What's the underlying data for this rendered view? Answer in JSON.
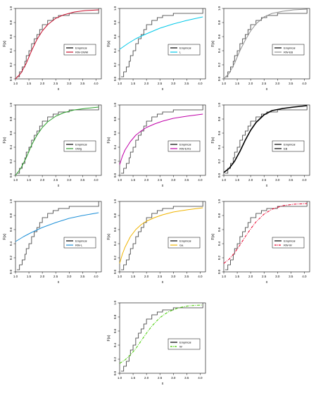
{
  "ecdf": {
    "x": [
      1.05,
      1.15,
      1.25,
      1.35,
      1.4,
      1.5,
      1.6,
      1.7,
      1.8,
      1.9,
      2.0,
      2.2,
      2.4,
      2.6,
      3.0,
      4.1
    ],
    "y": [
      0.03,
      0.1,
      0.17,
      0.25,
      0.33,
      0.4,
      0.5,
      0.57,
      0.63,
      0.7,
      0.77,
      0.83,
      0.87,
      0.9,
      0.93,
      1.0
    ]
  },
  "axes": {
    "xlabel": "x",
    "ylabel": "F(x)",
    "xlim": [
      1.0,
      4.2
    ],
    "ylim": [
      0.0,
      1.0
    ],
    "xticks": [
      "1.0",
      "1.5",
      "2.0",
      "2.5",
      "3.0",
      "3.5",
      "4.0"
    ],
    "yticks": [
      "0.0",
      "0.2",
      "0.4",
      "0.6",
      "0.8",
      "1.0"
    ]
  },
  "legend_empirical": "Empirical",
  "chart_data": [
    {
      "type": "line",
      "model": "RW-OWM",
      "color": "#c8102e",
      "linestyle": "solid",
      "legend": [
        "Empirical",
        "RW-OWM"
      ],
      "x": [
        1.0,
        1.2,
        1.4,
        1.6,
        1.8,
        2.0,
        2.2,
        2.5,
        2.8,
        3.2,
        3.6,
        4.1
      ],
      "y": [
        0.0,
        0.08,
        0.22,
        0.4,
        0.56,
        0.68,
        0.77,
        0.86,
        0.91,
        0.95,
        0.97,
        0.98
      ]
    },
    {
      "type": "line",
      "model": "L",
      "color": "#00c8e8",
      "linestyle": "solid",
      "legend": [
        "Empirical",
        "L"
      ],
      "x": [
        1.0,
        1.3,
        1.6,
        2.0,
        2.5,
        3.0,
        3.5,
        4.1
      ],
      "y": [
        0.42,
        0.5,
        0.57,
        0.64,
        0.72,
        0.78,
        0.83,
        0.88
      ]
    },
    {
      "type": "line",
      "model": "RW-EB",
      "color": "#909090",
      "linestyle": "solid",
      "legend": [
        "Empirical",
        "RW-EB"
      ],
      "x": [
        1.0,
        1.2,
        1.4,
        1.6,
        1.8,
        2.0,
        2.2,
        2.5,
        2.8,
        3.2,
        3.6,
        4.1
      ],
      "y": [
        0.0,
        0.08,
        0.22,
        0.4,
        0.55,
        0.68,
        0.78,
        0.88,
        0.93,
        0.96,
        0.98,
        0.99
      ]
    },
    {
      "type": "line",
      "model": "OWg",
      "color": "#2ca02c",
      "linestyle": "solid",
      "legend": [
        "Empirical",
        "OWg"
      ],
      "x": [
        1.0,
        1.2,
        1.4,
        1.6,
        1.8,
        2.0,
        2.2,
        2.5,
        2.8,
        3.2,
        3.6,
        4.1
      ],
      "y": [
        0.0,
        0.1,
        0.25,
        0.43,
        0.57,
        0.68,
        0.76,
        0.84,
        0.89,
        0.93,
        0.95,
        0.97
      ]
    },
    {
      "type": "line",
      "model": "RW-EXG",
      "color": "#c000a8",
      "linestyle": "solid",
      "legend": [
        "Empirical",
        "RW-EXG"
      ],
      "x": [
        1.0,
        1.1,
        1.2,
        1.4,
        1.6,
        1.8,
        2.0,
        2.3,
        2.6,
        3.0,
        3.5,
        4.1
      ],
      "y": [
        0.15,
        0.27,
        0.36,
        0.48,
        0.57,
        0.63,
        0.68,
        0.73,
        0.77,
        0.81,
        0.84,
        0.87
      ]
    },
    {
      "type": "line",
      "model": "EB",
      "color": "#000000",
      "linestyle": "solid",
      "legend": [
        "Empirical",
        "EB"
      ],
      "x": [
        1.0,
        1.2,
        1.4,
        1.6,
        1.8,
        2.0,
        2.2,
        2.5,
        2.8,
        3.2,
        3.6,
        4.1
      ],
      "y": [
        0.04,
        0.1,
        0.2,
        0.34,
        0.5,
        0.64,
        0.75,
        0.86,
        0.92,
        0.95,
        0.97,
        0.99
      ]
    },
    {
      "type": "line",
      "model": "RW-L",
      "color": "#1e90d8",
      "linestyle": "solid",
      "legend": [
        "Empirical",
        "RW-L"
      ],
      "x": [
        1.0,
        1.3,
        1.6,
        2.0,
        2.5,
        3.0,
        3.5,
        4.1
      ],
      "y": [
        0.43,
        0.5,
        0.56,
        0.63,
        0.7,
        0.76,
        0.8,
        0.84
      ]
    },
    {
      "type": "line",
      "model": "Ga",
      "color": "#f0b400",
      "linestyle": "solid",
      "legend": [
        "Empirical",
        "Ga"
      ],
      "x": [
        1.0,
        1.1,
        1.2,
        1.4,
        1.6,
        1.8,
        2.0,
        2.3,
        2.6,
        3.0,
        3.5,
        4.1
      ],
      "y": [
        0.12,
        0.25,
        0.35,
        0.5,
        0.6,
        0.67,
        0.72,
        0.77,
        0.81,
        0.85,
        0.88,
        0.91
      ]
    },
    {
      "type": "line",
      "model": "RW-W",
      "color": "#e8002c",
      "linestyle": "dashdot",
      "legend": [
        "Empirical",
        "RW-W"
      ],
      "x": [
        1.0,
        1.2,
        1.4,
        1.6,
        1.8,
        2.0,
        2.2,
        2.5,
        2.8,
        3.2,
        3.6,
        4.1
      ],
      "y": [
        0.12,
        0.18,
        0.27,
        0.38,
        0.5,
        0.61,
        0.71,
        0.82,
        0.89,
        0.94,
        0.96,
        0.97
      ]
    },
    {
      "type": "line",
      "model": "W",
      "color": "#44cc00",
      "linestyle": "dashdot",
      "legend": [
        "Empirical",
        "W"
      ],
      "x": [
        1.0,
        1.2,
        1.4,
        1.6,
        1.8,
        2.0,
        2.2,
        2.5,
        2.8,
        3.2,
        3.6,
        4.1
      ],
      "y": [
        0.14,
        0.19,
        0.26,
        0.35,
        0.46,
        0.57,
        0.67,
        0.79,
        0.87,
        0.93,
        0.96,
        0.97
      ]
    }
  ]
}
